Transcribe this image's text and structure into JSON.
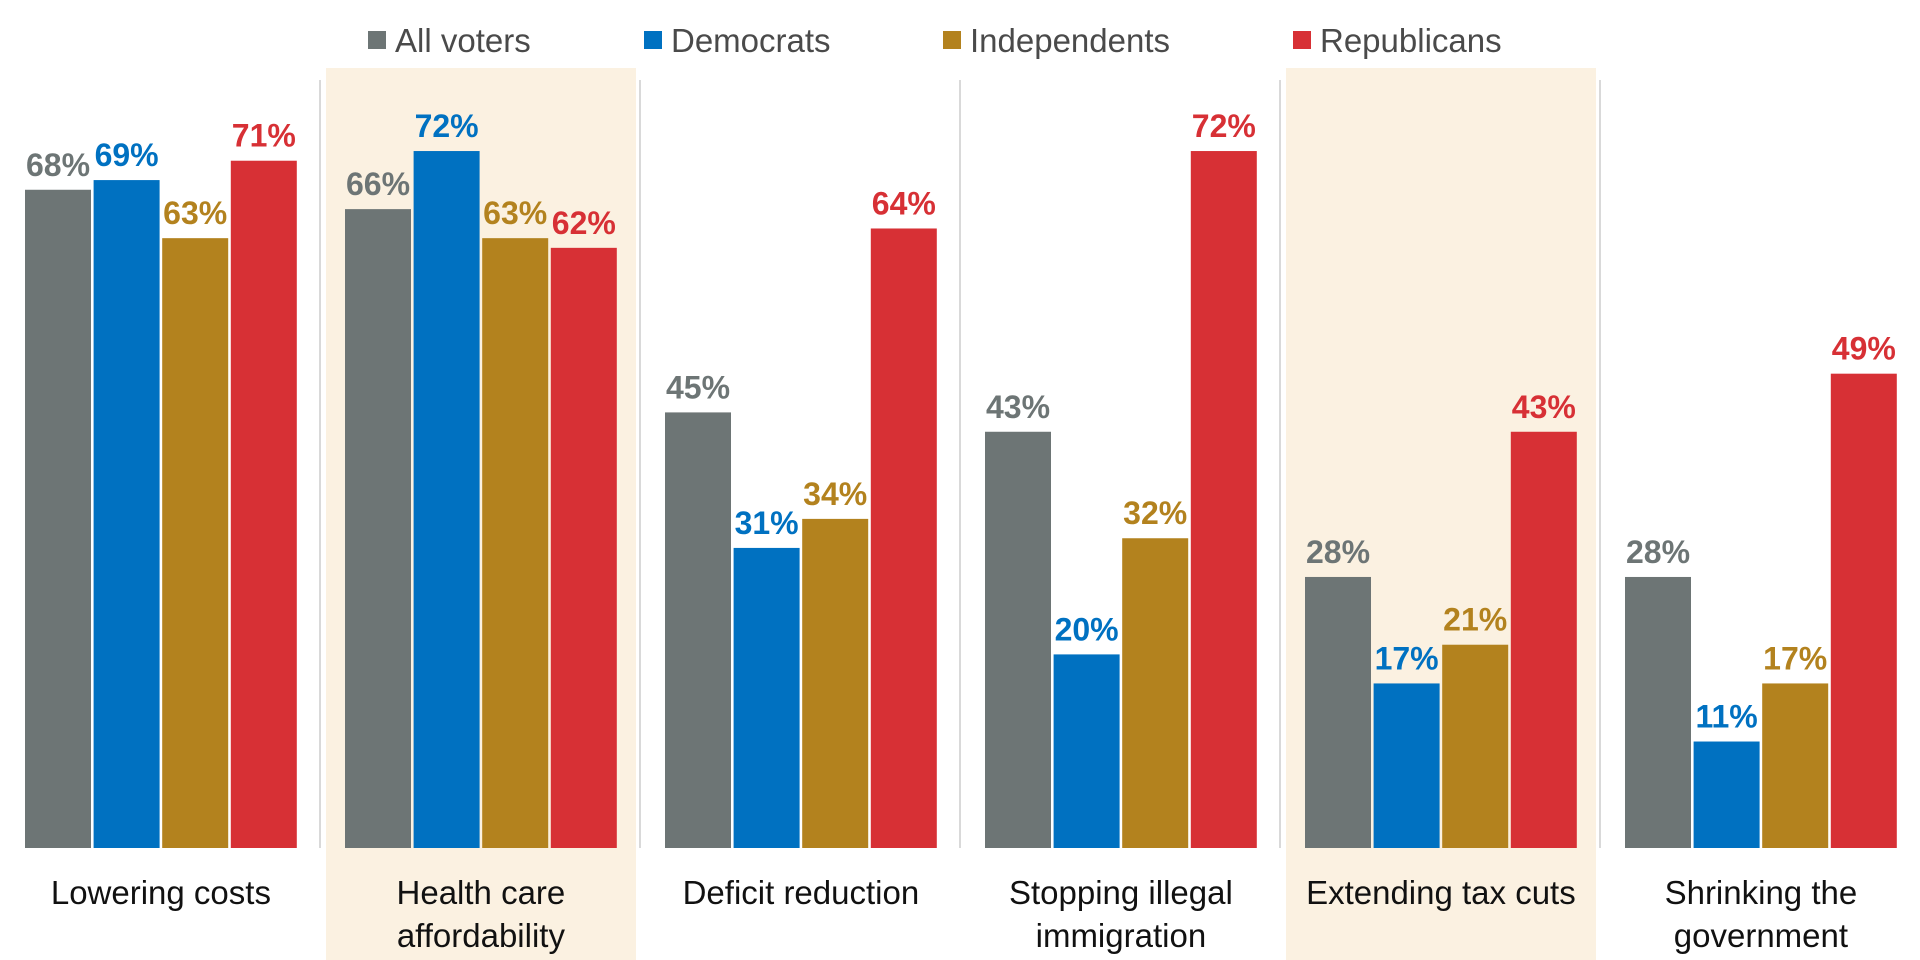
{
  "chart_data": {
    "type": "bar",
    "categories": [
      [
        "Lowering costs"
      ],
      [
        "Health care",
        "affordability"
      ],
      [
        "Deficit reduction"
      ],
      [
        "Stopping illegal",
        "immigration"
      ],
      [
        "Extending tax cuts"
      ],
      [
        "Shrinking the",
        "government"
      ]
    ],
    "highlighted_categories": [
      1,
      4
    ],
    "series": [
      {
        "name": "All voters",
        "values": [
          68,
          66,
          45,
          43,
          28,
          28
        ]
      },
      {
        "name": "Democrats",
        "values": [
          69,
          72,
          31,
          20,
          17,
          11
        ]
      },
      {
        "name": "Independents",
        "values": [
          63,
          63,
          34,
          32,
          21,
          17
        ]
      },
      {
        "name": "Republicans",
        "values": [
          71,
          62,
          64,
          72,
          43,
          49
        ]
      }
    ],
    "value_suffix": "%",
    "ylim": [
      0,
      80
    ],
    "legend_position": "top-center",
    "grid": false,
    "colors": {
      "series": [
        "#6d7575",
        "#0071c1",
        "#b3821e",
        "#d73035"
      ],
      "highlight_band": "#fbf1e1",
      "divider": "#d9d9d9"
    }
  }
}
